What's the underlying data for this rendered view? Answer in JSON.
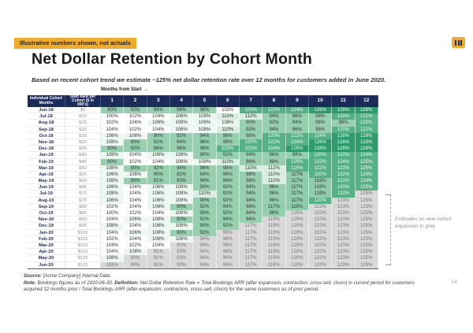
{
  "badge_text": "Illustrative numbers shown, not actuals",
  "logo_glyph": "III",
  "title": "Net Dollar Retention by Cohort Month",
  "subtitle": "Based on recent cohort trend we estimate ~125% net dollar retention rate over 12 months for customers added in June 2020.",
  "annotation_text": "Estimates on new cohort expansion in grey",
  "footer": {
    "source_label": "Source:",
    "source_text": " [Acme Company] Internal Data.",
    "note_label": "Note:",
    "note_text": " Bookings figures as of 2020-06-30. ",
    "definition_label": "Definition:",
    "definition_text": " Net Dollar Retention Rate = Total Bookings ARR (after expansion, contraction, cross-sell, churn) in current period for customers acquired 12 months prior / Total Bookings ARR (after expansion, contraction, cross-sell, churn) for the same customers as of prior period.",
    "page_number": "14"
  },
  "colors": {
    "accent_yellow": "#F0AC28",
    "header_navy": "#1B2B5C",
    "green_dark": "#2D9B6C",
    "green": "#54B286",
    "green_mid": "#8FCCAC",
    "green_light": "#D9EEE2",
    "green_faint": "#EDF7F1",
    "green_low": "#97D0AF",
    "estimate_grey": "#D9D9D9"
  },
  "chart_data": {
    "type": "heatmap",
    "months_label": "Months from Start →",
    "corner_headers": [
      "Individual Cohort Months",
      "Start ARR per Cohort ($ in 000's)"
    ],
    "month_columns": [
      "1",
      "2",
      "3",
      "4",
      "5",
      "6",
      "7",
      "8",
      "9",
      "10",
      "11",
      "12"
    ],
    "unit": "%",
    "legend_note": "grey cells are estimates on new cohort expansion",
    "rows": [
      {
        "cohort": "Jun-18",
        "start_arr": "$5",
        "estimate_from": 13,
        "values": [
          90,
          92,
          94,
          96,
          98,
          102,
          120,
          122,
          124,
          126,
          128,
          128
        ]
      },
      {
        "cohort": "Jul-18",
        "start_arr": "$10",
        "estimate_from": 13,
        "values": [
          100,
          102,
          104,
          106,
          108,
          110,
          112,
          94,
          96,
          98,
          120,
          122
        ]
      },
      {
        "cohort": "Aug-18",
        "start_arr": "$15",
        "estimate_from": 13,
        "values": [
          102,
          104,
          106,
          108,
          106,
          108,
          90,
          92,
          94,
          96,
          98,
          120
        ]
      },
      {
        "cohort": "Sep-18",
        "start_arr": "$20",
        "estimate_from": 13,
        "values": [
          104,
          102,
          104,
          106,
          108,
          110,
          92,
          94,
          96,
          98,
          120,
          122
        ]
      },
      {
        "cohort": "Oct-18",
        "start_arr": "$25",
        "estimate_from": 13,
        "values": [
          106,
          108,
          90,
          92,
          94,
          96,
          98,
          120,
          122,
          124,
          126,
          128
        ]
      },
      {
        "cohort": "Nov-18",
        "start_arr": "$30",
        "estimate_from": 13,
        "values": [
          108,
          90,
          92,
          94,
          96,
          98,
          120,
          122,
          124,
          126,
          128,
          128
        ]
      },
      {
        "cohort": "Dec-18",
        "start_arr": "$35",
        "estimate_from": 13,
        "values": [
          90,
          92,
          94,
          96,
          98,
          120,
          122,
          124,
          126,
          128,
          126,
          128
        ]
      },
      {
        "cohort": "Jan-19",
        "start_arr": "$40",
        "estimate_from": 13,
        "values": [
          108,
          104,
          106,
          108,
          90,
          92,
          94,
          96,
          98,
          120,
          122,
          124
        ]
      },
      {
        "cohort": "Feb-19",
        "start_arr": "$45",
        "estimate_from": 13,
        "values": [
          90,
          102,
          104,
          106,
          108,
          110,
          96,
          98,
          120,
          122,
          124,
          125
        ]
      },
      {
        "cohort": "Mar-19",
        "start_arr": "$50",
        "estimate_from": 13,
        "values": [
          108,
          90,
          92,
          94,
          96,
          98,
          110,
          112,
          120,
          122,
          123,
          125
        ]
      },
      {
        "cohort": "Apr-19",
        "start_arr": "$55",
        "estimate_from": 13,
        "values": [
          106,
          108,
          90,
          92,
          94,
          96,
          98,
          110,
          117,
          120,
          122,
          124
        ]
      },
      {
        "cohort": "May-19",
        "start_arr": "$60",
        "estimate_from": 13,
        "values": [
          108,
          90,
          91,
          93,
          94,
          96,
          98,
          110,
          117,
          119,
          122,
          124
        ]
      },
      {
        "cohort": "Jun-19",
        "start_arr": "$65",
        "estimate_from": 13,
        "values": [
          106,
          104,
          106,
          108,
          90,
          92,
          94,
          96,
          117,
          119,
          120,
          125
        ]
      },
      {
        "cohort": "Jul-19",
        "start_arr": "$70",
        "estimate_from": 12,
        "values": [
          108,
          104,
          106,
          108,
          110,
          92,
          94,
          96,
          117,
          119,
          122,
          125
        ]
      },
      {
        "cohort": "Aug-19",
        "start_arr": "$75",
        "estimate_from": 11,
        "values": [
          106,
          104,
          106,
          108,
          90,
          92,
          94,
          96,
          117,
          120,
          123,
          125
        ]
      },
      {
        "cohort": "Sep-19",
        "start_arr": "$80",
        "estimate_from": 10,
        "values": [
          102,
          104,
          106,
          90,
          92,
          94,
          96,
          117,
          119,
          122,
          123,
          125
        ]
      },
      {
        "cohort": "Oct-19",
        "start_arr": "$85",
        "estimate_from": 9,
        "values": [
          100,
          102,
          104,
          106,
          90,
          92,
          94,
          96,
          120,
          122,
          123,
          125
        ]
      },
      {
        "cohort": "Nov-19",
        "start_arr": "$90",
        "estimate_from": 8,
        "values": [
          104,
          106,
          108,
          90,
          92,
          94,
          96,
          119,
          120,
          122,
          123,
          125
        ]
      },
      {
        "cohort": "Dec-19",
        "start_arr": "$95",
        "estimate_from": 7,
        "values": [
          108,
          104,
          106,
          108,
          90,
          92,
          117,
          119,
          120,
          122,
          123,
          125
        ]
      },
      {
        "cohort": "Jan-20",
        "start_arr": "$100",
        "estimate_from": 6,
        "values": [
          104,
          106,
          108,
          90,
          92,
          96,
          117,
          119,
          120,
          122,
          123,
          125
        ]
      },
      {
        "cohort": "Feb-20",
        "start_arr": "$105",
        "estimate_from": 5,
        "values": [
          102,
          104,
          106,
          108,
          94,
          96,
          117,
          119,
          120,
          122,
          123,
          125
        ]
      },
      {
        "cohort": "Mar-20",
        "start_arr": "$110",
        "estimate_from": 4,
        "values": [
          104,
          102,
          104,
          93,
          94,
          96,
          117,
          119,
          120,
          122,
          123,
          125
        ]
      },
      {
        "cohort": "Apr-20",
        "start_arr": "$115",
        "estimate_from": 3,
        "values": [
          104,
          108,
          91,
          93,
          94,
          96,
          117,
          119,
          120,
          122,
          123,
          125
        ]
      },
      {
        "cohort": "May-20",
        "start_arr": "$120",
        "estimate_from": 2,
        "values": [
          108,
          90,
          91,
          93,
          94,
          96,
          117,
          119,
          120,
          122,
          123,
          125
        ]
      },
      {
        "cohort": "Jun-20",
        "start_arr": "$125",
        "estimate_from": 1,
        "values": [
          108,
          90,
          91,
          93,
          94,
          96,
          117,
          119,
          120,
          122,
          123,
          125
        ]
      }
    ]
  }
}
